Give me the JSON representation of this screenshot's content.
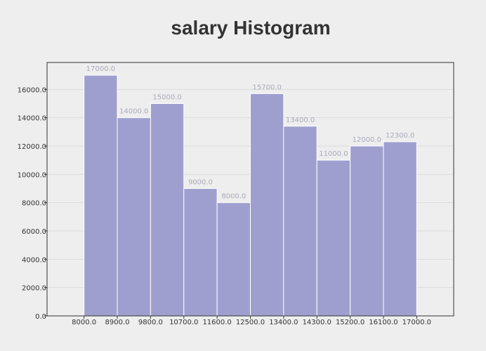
{
  "colors": {
    "background": "#eeeeee",
    "plot_background": "#eeeeee",
    "bar_fill": "#9f9fcf",
    "bar_stroke": "#ffffff",
    "grid": "#dcdcdc",
    "axis": "#333333",
    "data_label": "#aaaabb"
  },
  "chart_data": {
    "type": "bar",
    "title": "salary Histogram",
    "xlabel": "",
    "ylabel": "",
    "bin_edges": [
      8000,
      8900,
      9800,
      10700,
      11600,
      12500,
      13400,
      14300,
      15200,
      16100,
      17000
    ],
    "x_tick_labels": [
      "8000.0",
      "8900.0",
      "9800.0",
      "10700.0",
      "11600.0",
      "12500.0",
      "13400.0",
      "14300.0",
      "15200.0",
      "16100.0",
      "17000.0"
    ],
    "values": [
      17000,
      14000,
      15000,
      9000,
      8000,
      15700,
      13400,
      11000,
      12000,
      12300
    ],
    "value_labels": [
      "17000.0",
      "14000.0",
      "15000.0",
      "9000.0",
      "8000.0",
      "15700.0",
      "13400.0",
      "11000.0",
      "12000.0",
      "12300.0"
    ],
    "y_ticks": [
      0,
      2000,
      4000,
      6000,
      8000,
      10000,
      12000,
      14000,
      16000
    ],
    "y_tick_labels": [
      "0.0",
      "2000.0",
      "4000.0",
      "6000.0",
      "8000.0",
      "10000.0",
      "12000.0",
      "14000.0",
      "16000.0"
    ],
    "xlim": [
      7000,
      18000
    ],
    "ylim": [
      0,
      17900
    ],
    "grid": true,
    "legend": "none"
  }
}
